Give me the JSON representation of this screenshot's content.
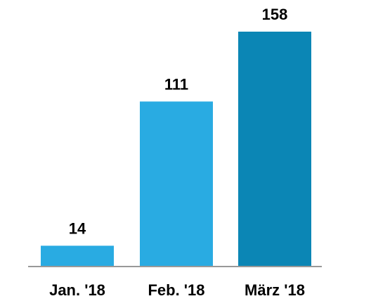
{
  "chart_data": {
    "type": "bar",
    "categories": [
      "Jan. '18",
      "Feb. '18",
      "März '18"
    ],
    "values": [
      14,
      111,
      158
    ],
    "value_labels": [
      "14",
      "111",
      "158"
    ],
    "ylim": [
      0,
      158
    ],
    "grid": false,
    "colors": [
      "#29abe2",
      "#29abe2",
      "#0b86b5"
    ],
    "baseline_color": "#999999"
  }
}
